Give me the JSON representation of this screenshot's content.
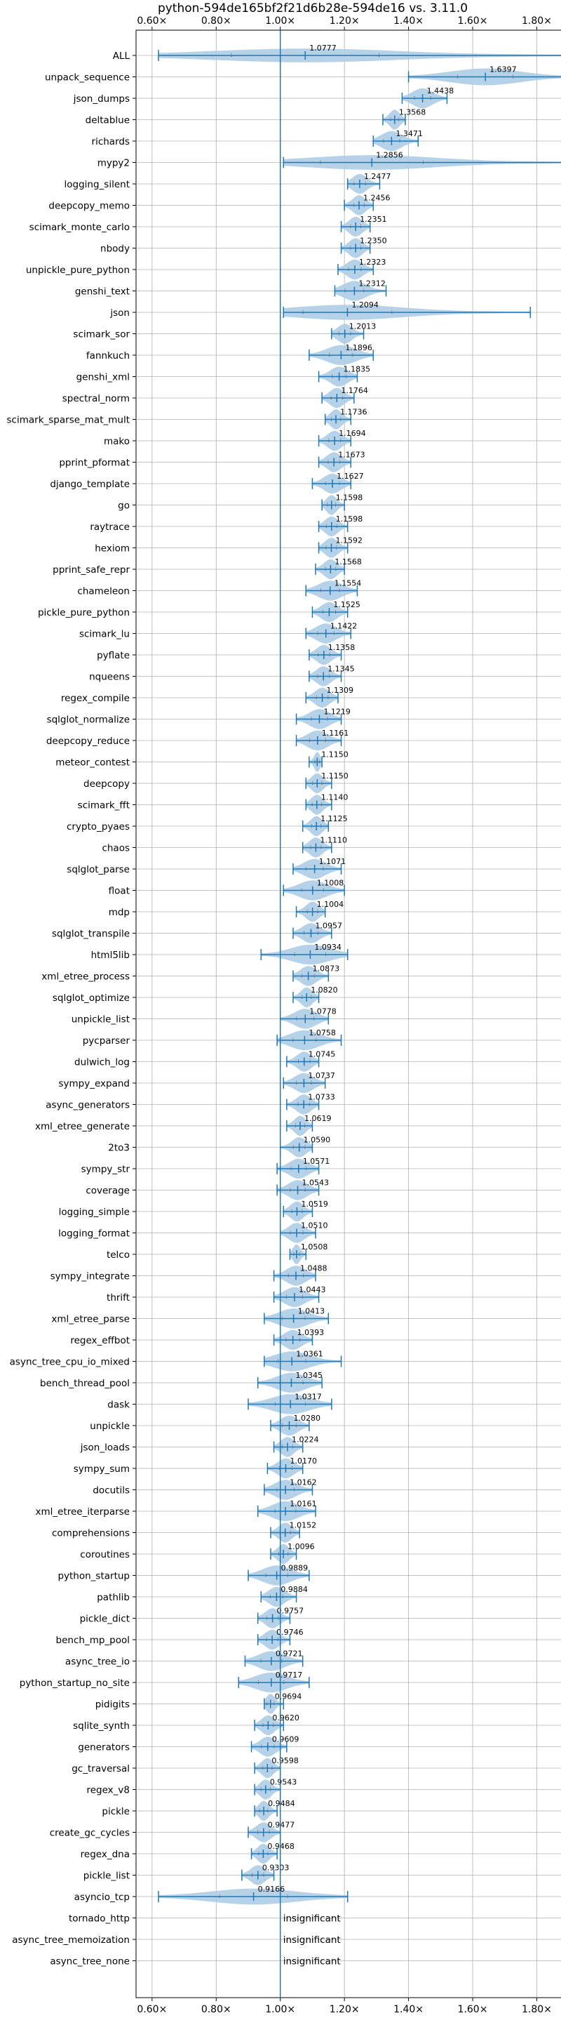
{
  "chart_data": {
    "type": "violin",
    "title": "python-594de165bf2f21d6b28e-594de16 vs. 3.11.0",
    "xlim": [
      0.55,
      1.88
    ],
    "x_ticks": [
      0.6,
      0.8,
      1.0,
      1.2,
      1.4,
      1.6,
      1.8
    ],
    "x_tick_labels": [
      "0.60×",
      "0.80×",
      "1.00×",
      "1.20×",
      "1.40×",
      "1.60×",
      "1.80×"
    ],
    "tick_positions": [
      "top",
      "bottom"
    ],
    "reference_line": 1.0,
    "grid": true,
    "insignificant_label": "insignificant",
    "categories": [
      "ALL",
      "unpack_sequence",
      "json_dumps",
      "deltablue",
      "richards",
      "mypy2",
      "logging_silent",
      "deepcopy_memo",
      "scimark_monte_carlo",
      "nbody",
      "unpickle_pure_python",
      "genshi_text",
      "json",
      "scimark_sor",
      "fannkuch",
      "genshi_xml",
      "spectral_norm",
      "scimark_sparse_mat_mult",
      "mako",
      "pprint_pformat",
      "django_template",
      "go",
      "raytrace",
      "hexiom",
      "pprint_safe_repr",
      "chameleon",
      "pickle_pure_python",
      "scimark_lu",
      "pyflate",
      "nqueens",
      "regex_compile",
      "sqlglot_normalize",
      "deepcopy_reduce",
      "meteor_contest",
      "deepcopy",
      "scimark_fft",
      "crypto_pyaes",
      "chaos",
      "sqlglot_parse",
      "float",
      "mdp",
      "sqlglot_transpile",
      "html5lib",
      "xml_etree_process",
      "sqlglot_optimize",
      "unpickle_list",
      "pycparser",
      "dulwich_log",
      "sympy_expand",
      "async_generators",
      "xml_etree_generate",
      "2to3",
      "sympy_str",
      "coverage",
      "logging_simple",
      "logging_format",
      "telco",
      "sympy_integrate",
      "thrift",
      "xml_etree_parse",
      "regex_effbot",
      "async_tree_cpu_io_mixed",
      "bench_thread_pool",
      "dask",
      "unpickle",
      "json_loads",
      "sympy_sum",
      "docutils",
      "xml_etree_iterparse",
      "comprehensions",
      "coroutines",
      "python_startup",
      "pathlib",
      "pickle_dict",
      "bench_mp_pool",
      "async_tree_io",
      "python_startup_no_site",
      "pidigits",
      "sqlite_synth",
      "generators",
      "gc_traversal",
      "regex_v8",
      "pickle",
      "create_gc_cycles",
      "regex_dna",
      "pickle_list",
      "asyncio_tcp",
      "tornado_http",
      "async_tree_memoization",
      "async_tree_none"
    ],
    "values": [
      1.0777,
      1.6397,
      1.4438,
      1.3568,
      1.3471,
      1.2856,
      1.2477,
      1.2456,
      1.2351,
      1.235,
      1.2323,
      1.2312,
      1.2094,
      1.2013,
      1.1896,
      1.1835,
      1.1764,
      1.1736,
      1.1694,
      1.1673,
      1.1627,
      1.1598,
      1.1598,
      1.1592,
      1.1568,
      1.1554,
      1.1525,
      1.1422,
      1.1358,
      1.1345,
      1.1309,
      1.1219,
      1.1161,
      1.115,
      1.115,
      1.114,
      1.1125,
      1.111,
      1.1071,
      1.1008,
      1.1004,
      1.0957,
      1.0934,
      1.0873,
      1.082,
      1.0778,
      1.0758,
      1.0745,
      1.0737,
      1.0733,
      1.0619,
      1.059,
      1.0571,
      1.0543,
      1.0519,
      1.051,
      1.0508,
      1.0488,
      1.0443,
      1.0413,
      1.0393,
      1.0361,
      1.0345,
      1.0317,
      1.028,
      1.0224,
      1.017,
      1.0162,
      1.0161,
      1.0152,
      1.0096,
      0.9889,
      0.9884,
      0.9757,
      0.9746,
      0.9721,
      0.9717,
      0.9694,
      0.962,
      0.9609,
      0.9598,
      0.9543,
      0.9484,
      0.9477,
      0.9468,
      0.9303,
      0.9166,
      null,
      null,
      null
    ],
    "value_labels": [
      "1.0777",
      "1.6397",
      "1.4438",
      "1.3568",
      "1.3471",
      "1.2856",
      "1.2477",
      "1.2456",
      "1.2351",
      "1.2350",
      "1.2323",
      "1.2312",
      "1.2094",
      "1.2013",
      "1.1896",
      "1.1835",
      "1.1764",
      "1.1736",
      "1.1694",
      "1.1673",
      "1.1627",
      "1.1598",
      "1.1598",
      "1.1592",
      "1.1568",
      "1.1554",
      "1.1525",
      "1.1422",
      "1.1358",
      "1.1345",
      "1.1309",
      "1.1219",
      "1.1161",
      "1.1150",
      "1.1150",
      "1.1140",
      "1.1125",
      "1.1110",
      "1.1071",
      "1.1008",
      "1.1004",
      "1.0957",
      "1.0934",
      "1.0873",
      "1.0820",
      "1.0778",
      "1.0758",
      "1.0745",
      "1.0737",
      "1.0733",
      "1.0619",
      "1.0590",
      "1.0571",
      "1.0543",
      "1.0519",
      "1.0510",
      "1.0508",
      "1.0488",
      "1.0443",
      "1.0413",
      "1.0393",
      "1.0361",
      "1.0345",
      "1.0317",
      "1.0280",
      "1.0224",
      "1.0170",
      "1.0162",
      "1.0161",
      "1.0152",
      "1.0096",
      "0.9889",
      "0.9884",
      "0.9757",
      "0.9746",
      "0.9721",
      "0.9717",
      "0.9694",
      "0.9620",
      "0.9609",
      "0.9598",
      "0.9543",
      "0.9484",
      "0.9477",
      "0.9468",
      "0.9303",
      "0.9166",
      null,
      null,
      null
    ],
    "ranges": [
      [
        0.62,
        1.9
      ],
      [
        1.4,
        1.88
      ],
      [
        1.38,
        1.52
      ],
      [
        1.32,
        1.39
      ],
      [
        1.29,
        1.43
      ],
      [
        1.01,
        1.9
      ],
      [
        1.21,
        1.31
      ],
      [
        1.2,
        1.29
      ],
      [
        1.19,
        1.28
      ],
      [
        1.19,
        1.28
      ],
      [
        1.18,
        1.29
      ],
      [
        1.17,
        1.33
      ],
      [
        1.01,
        1.78
      ],
      [
        1.16,
        1.26
      ],
      [
        1.09,
        1.29
      ],
      [
        1.12,
        1.24
      ],
      [
        1.13,
        1.23
      ],
      [
        1.14,
        1.22
      ],
      [
        1.12,
        1.22
      ],
      [
        1.12,
        1.22
      ],
      [
        1.1,
        1.22
      ],
      [
        1.13,
        1.2
      ],
      [
        1.12,
        1.21
      ],
      [
        1.12,
        1.21
      ],
      [
        1.11,
        1.2
      ],
      [
        1.08,
        1.24
      ],
      [
        1.1,
        1.21
      ],
      [
        1.08,
        1.22
      ],
      [
        1.09,
        1.19
      ],
      [
        1.09,
        1.19
      ],
      [
        1.08,
        1.18
      ],
      [
        1.05,
        1.19
      ],
      [
        1.05,
        1.19
      ],
      [
        1.09,
        1.13
      ],
      [
        1.08,
        1.16
      ],
      [
        1.08,
        1.16
      ],
      [
        1.07,
        1.15
      ],
      [
        1.07,
        1.16
      ],
      [
        1.04,
        1.19
      ],
      [
        1.01,
        1.2
      ],
      [
        1.05,
        1.14
      ],
      [
        1.04,
        1.16
      ],
      [
        0.94,
        1.21
      ],
      [
        1.04,
        1.15
      ],
      [
        1.04,
        1.12
      ],
      [
        1.0,
        1.15
      ],
      [
        0.99,
        1.19
      ],
      [
        1.02,
        1.12
      ],
      [
        1.01,
        1.14
      ],
      [
        1.02,
        1.12
      ],
      [
        1.02,
        1.1
      ],
      [
        1.0,
        1.1
      ],
      [
        0.99,
        1.12
      ],
      [
        0.99,
        1.12
      ],
      [
        1.01,
        1.1
      ],
      [
        1.0,
        1.11
      ],
      [
        1.03,
        1.08
      ],
      [
        0.98,
        1.11
      ],
      [
        0.98,
        1.12
      ],
      [
        0.95,
        1.15
      ],
      [
        0.98,
        1.1
      ],
      [
        0.95,
        1.19
      ],
      [
        0.93,
        1.13
      ],
      [
        0.9,
        1.16
      ],
      [
        0.97,
        1.09
      ],
      [
        0.98,
        1.07
      ],
      [
        0.96,
        1.07
      ],
      [
        0.95,
        1.1
      ],
      [
        0.93,
        1.11
      ],
      [
        0.97,
        1.06
      ],
      [
        0.97,
        1.05
      ],
      [
        0.9,
        1.09
      ],
      [
        0.94,
        1.05
      ],
      [
        0.93,
        1.03
      ],
      [
        0.93,
        1.03
      ],
      [
        0.89,
        1.07
      ],
      [
        0.87,
        1.09
      ],
      [
        0.95,
        1.01
      ],
      [
        0.92,
        1.01
      ],
      [
        0.91,
        1.02
      ],
      [
        0.92,
        1.0
      ],
      [
        0.92,
        1.0
      ],
      [
        0.92,
        0.99
      ],
      [
        0.9,
        1.0
      ],
      [
        0.91,
        0.99
      ],
      [
        0.88,
        0.98
      ],
      [
        0.62,
        1.21
      ],
      null,
      null,
      null
    ]
  }
}
